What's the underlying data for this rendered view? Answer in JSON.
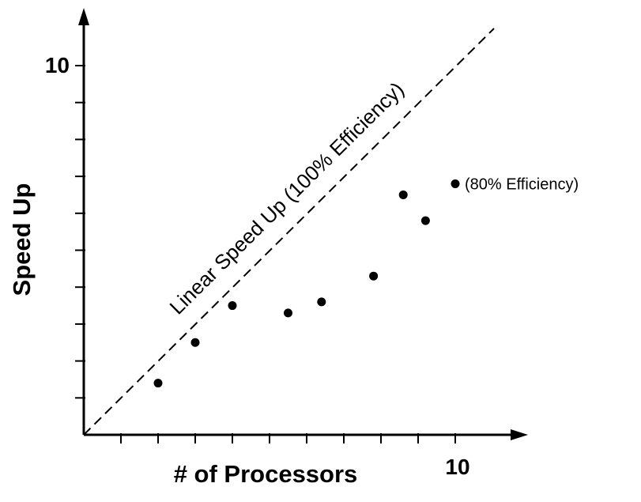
{
  "chart_data": {
    "type": "scatter",
    "title": "",
    "xlabel": "# of Processors",
    "ylabel": "Speed Up",
    "xlim": [
      0,
      11.5
    ],
    "ylim": [
      0,
      11.5
    ],
    "x_tick_values": [
      1,
      2,
      3,
      4,
      5,
      6,
      7,
      8,
      9,
      10
    ],
    "y_tick_values": [
      1,
      2,
      3,
      4,
      5,
      6,
      7,
      8,
      9,
      10
    ],
    "x_tick_labels_shown": [
      {
        "value": 10,
        "label": "10"
      }
    ],
    "y_tick_labels_shown": [
      {
        "value": 10,
        "label": "10"
      }
    ],
    "grid": false,
    "legend": "none",
    "reference_line": {
      "label": "Linear Speed Up (100% Efficiency)",
      "style": "dashed",
      "from": [
        0,
        0
      ],
      "to": [
        11,
        11
      ]
    },
    "series": [
      {
        "points": [
          {
            "x": 2,
            "y": 1.4
          },
          {
            "x": 3,
            "y": 2.5
          },
          {
            "x": 4,
            "y": 3.5
          },
          {
            "x": 5.5,
            "y": 3.3
          },
          {
            "x": 6.4,
            "y": 3.6
          },
          {
            "x": 7.8,
            "y": 4.3
          },
          {
            "x": 8.6,
            "y": 6.5
          },
          {
            "x": 9.2,
            "y": 5.8
          },
          {
            "x": 10,
            "y": 6.8
          }
        ]
      }
    ],
    "annotations": [
      {
        "text": "(80% Efficiency)",
        "at": {
          "x": 10,
          "y": 6.8
        }
      }
    ],
    "colors": {
      "foreground": "#000000",
      "background": "#ffffff"
    }
  }
}
